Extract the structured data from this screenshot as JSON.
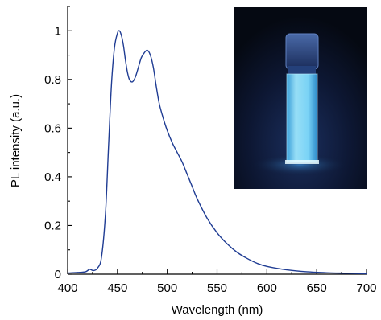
{
  "chart_data": {
    "type": "line",
    "xlabel": "Wavelength (nm)",
    "ylabel": "PL intensity (a.u.)",
    "xlim": [
      400,
      700
    ],
    "ylim": [
      0,
      1.1
    ],
    "x_ticks": [
      400,
      450,
      500,
      550,
      600,
      650,
      700
    ],
    "x_tick_labels": [
      "400",
      "450",
      "500",
      "550",
      "600",
      "650",
      "700"
    ],
    "y_ticks": [
      0,
      0.2,
      0.4,
      0.6,
      0.8,
      1.0
    ],
    "y_tick_labels": [
      "0",
      "0.2",
      "0.4",
      "0.6",
      "0.8",
      "1"
    ],
    "grid": false,
    "series": [
      {
        "color": "#1f3c93",
        "x": [
          400,
          410,
          418,
          422,
          426,
          430,
          434,
          438,
          441,
          444,
          447,
          450,
          452,
          454,
          456,
          458,
          460,
          462,
          465,
          468,
          471,
          474,
          477,
          480,
          483,
          486,
          489,
          492,
          496,
          500,
          505,
          510,
          515,
          520,
          525,
          530,
          540,
          550,
          560,
          570,
          580,
          590,
          600,
          620,
          640,
          660,
          680,
          700
        ],
        "y": [
          0.005,
          0.007,
          0.01,
          0.02,
          0.015,
          0.025,
          0.07,
          0.25,
          0.52,
          0.78,
          0.93,
          0.99,
          1.0,
          0.98,
          0.94,
          0.88,
          0.83,
          0.8,
          0.79,
          0.81,
          0.85,
          0.89,
          0.91,
          0.92,
          0.9,
          0.85,
          0.77,
          0.7,
          0.64,
          0.59,
          0.54,
          0.5,
          0.46,
          0.41,
          0.36,
          0.31,
          0.23,
          0.17,
          0.125,
          0.09,
          0.065,
          0.045,
          0.032,
          0.018,
          0.01,
          0.006,
          0.004,
          0.002
        ]
      }
    ]
  },
  "inset": {
    "description_icon": "cuvette-photo"
  }
}
